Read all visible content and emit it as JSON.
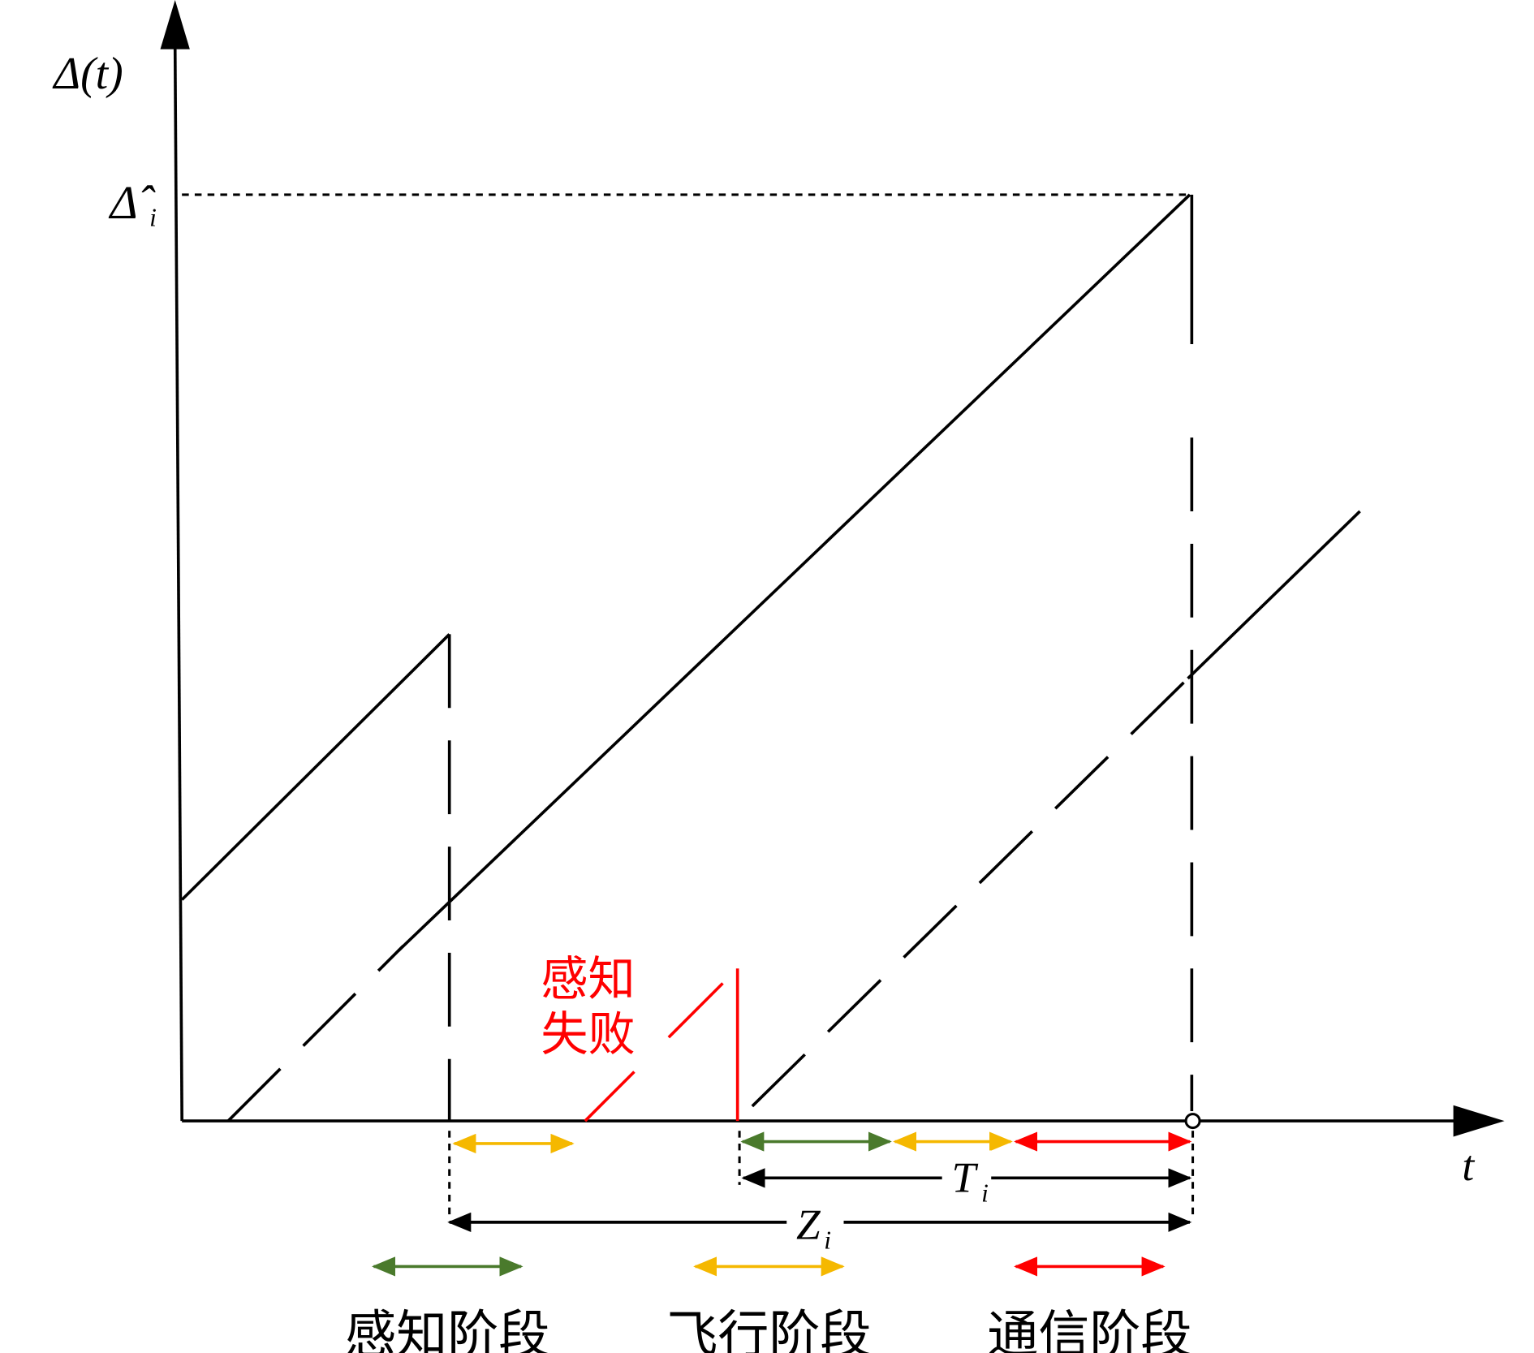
{
  "y_axis_label": "Δ(t)",
  "x_axis_label": "t",
  "threshold_label": {
    "main": "Δ̂",
    "sub": "i"
  },
  "failure_label": [
    "感知",
    "失败"
  ],
  "interval_T": {
    "main": "T",
    "sub": "i"
  },
  "interval_Z": {
    "main": "Z",
    "sub": "i"
  },
  "legend": [
    "感知阶段",
    "飞行阶段",
    "通信阶段"
  ]
}
